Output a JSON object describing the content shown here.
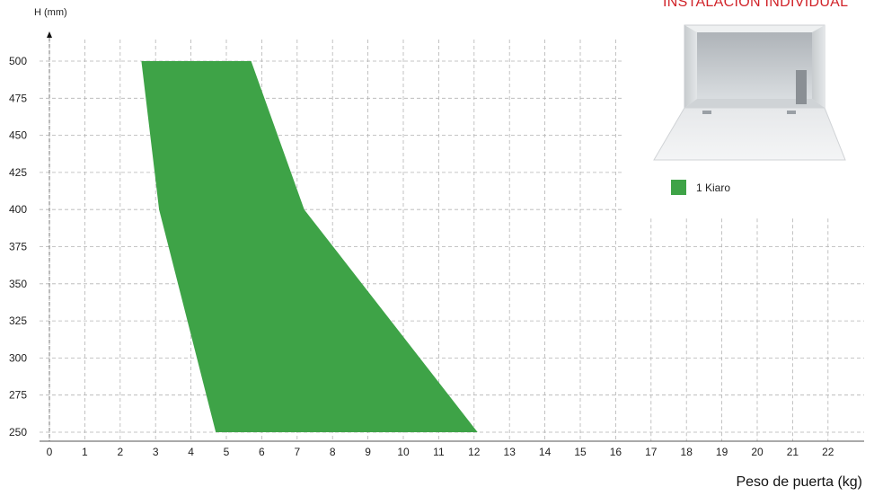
{
  "chart_data": {
    "type": "area",
    "title": "INSTALACIÓN INDIVIDUAL",
    "xlabel": "Peso de puerta (kg)",
    "ylabel": "H (mm)",
    "xlim": [
      0,
      22
    ],
    "ylim": [
      250,
      500
    ],
    "x_ticks": [
      "0",
      "1",
      "2",
      "3",
      "4",
      "5",
      "6",
      "7",
      "8",
      "9",
      "10",
      "11",
      "12",
      "13",
      "14",
      "15",
      "16",
      "17",
      "18",
      "19",
      "20",
      "21",
      "22"
    ],
    "y_ticks": [
      "500",
      "475",
      "450",
      "425",
      "400",
      "375",
      "350",
      "325",
      "300",
      "275",
      "250"
    ],
    "grid": "dashed",
    "series": [
      {
        "name": "1 Kiaro",
        "color": "#3ea347",
        "polygon": [
          {
            "x": 2.6,
            "y": 500
          },
          {
            "x": 5.7,
            "y": 500
          },
          {
            "x": 7.2,
            "y": 400
          },
          {
            "x": 12.1,
            "y": 250
          },
          {
            "x": 4.7,
            "y": 250
          },
          {
            "x": 3.1,
            "y": 400
          }
        ]
      }
    ],
    "legend_position": "top-right"
  }
}
